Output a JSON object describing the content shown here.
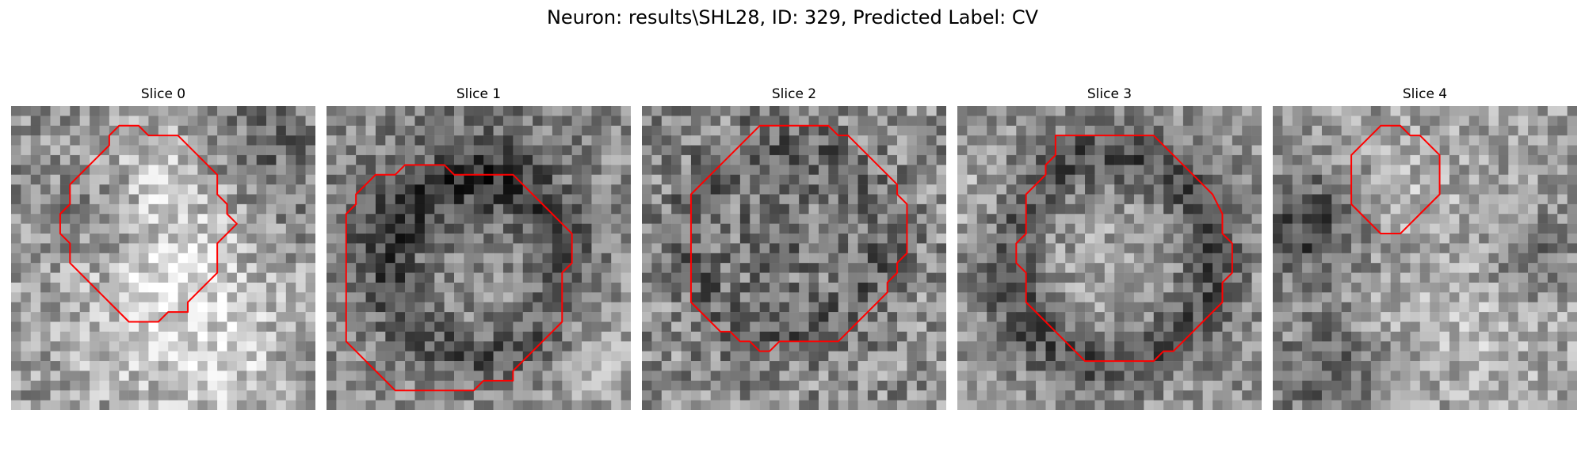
{
  "figure": {
    "title": "Neuron: results\\SHL28, ID: 329, Predicted Label: CV"
  },
  "colors": {
    "background": "#ffffff",
    "contour": "#ff0000",
    "image_colormap": "grayscale"
  },
  "panels": [
    {
      "title": "Slice 0"
    },
    {
      "title": "Slice 1"
    },
    {
      "title": "Slice 2"
    },
    {
      "title": "Slice 3"
    },
    {
      "title": "Slice 4"
    }
  ]
}
